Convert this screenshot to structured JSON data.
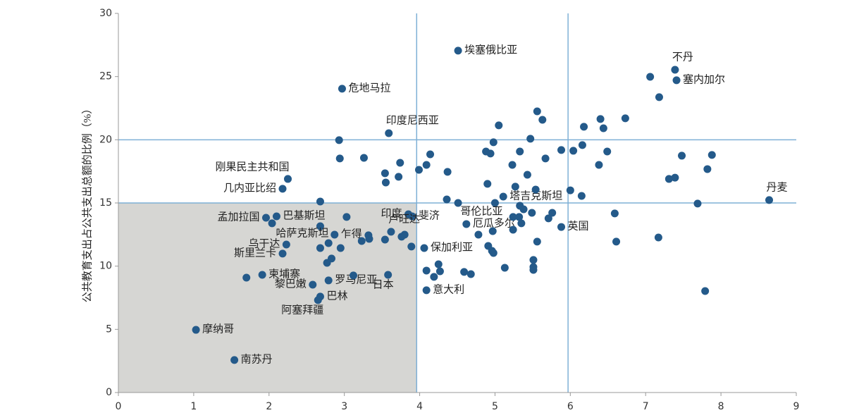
{
  "chart_data": {
    "type": "scatter",
    "y_label": "公共教育支出占公共支出总额的比例（%）",
    "xlim": [
      0,
      9
    ],
    "xticks": [
      0,
      1,
      2,
      3,
      4,
      5,
      6,
      7,
      8,
      9
    ],
    "ylim": [
      0,
      30
    ],
    "yticks": [
      0,
      5,
      10,
      15,
      20,
      25,
      30
    ],
    "vlines": [
      3.96,
      5.97
    ],
    "hlines": [
      15,
      20
    ],
    "shade": {
      "x": [
        0,
        3.96
      ],
      "y": [
        0,
        15
      ]
    },
    "line_color": "#7fb0d6",
    "shade_color": "#d6d6d3",
    "series": [
      {
        "color": "#245a8a",
        "labels": [
          "埃塞俄比亚",
          "危地马拉",
          "印度尼西亚",
          "刚果民主共和国",
          "几内亚比绍",
          "不丹",
          "塞内加尔",
          "丹麦",
          "孟加拉国",
          "巴基斯坦",
          "哈萨克斯坦",
          "乌干达",
          "斯里兰卡",
          "柬埔寨",
          "黎巴嫩",
          "巴林",
          "阿塞拜疆",
          "罗马尼亚",
          "日本",
          "摩纳哥",
          "南苏丹",
          "印度",
          "斐济",
          "卢旺达",
          "保加利亚",
          "意大利",
          "哥伦比亚",
          "厄瓜多尔",
          "塔吉克斯坦",
          "英国",
          "乍得",
          null,
          null,
          null,
          null,
          null,
          null,
          null,
          null,
          null,
          null,
          null,
          null,
          null,
          null,
          null,
          null,
          null,
          null,
          null,
          null,
          null,
          null,
          null,
          null,
          null,
          null,
          null,
          null,
          null,
          null,
          null,
          null,
          null,
          null,
          null,
          null,
          null,
          null,
          null,
          null,
          null,
          null,
          null,
          null,
          null,
          null,
          null,
          null,
          null,
          null,
          null,
          null,
          null,
          null,
          null,
          null,
          null,
          null,
          null,
          null,
          null,
          null,
          null,
          null,
          null,
          null,
          null,
          null,
          null,
          null,
          null,
          null,
          null,
          null,
          null,
          null,
          null,
          null,
          null,
          null,
          null,
          null,
          null,
          null,
          null,
          null
        ],
        "x": [
          4.51,
          2.97,
          3.59,
          2.25,
          2.18,
          7.39,
          7.41,
          8.64,
          1.96,
          2.1,
          2.68,
          2.23,
          2.18,
          1.91,
          2.58,
          2.68,
          2.65,
          2.79,
          3.58,
          1.03,
          1.54,
          3.85,
          3.9,
          3.62,
          4.06,
          4.09,
          5.0,
          4.62,
          5.11,
          5.88,
          2.87,
          7.06,
          7.18,
          6.73,
          6.4,
          6.44,
          6.18,
          6.16,
          6.49,
          6.04,
          5.88,
          6.0,
          6.15,
          6.38,
          6.59,
          6.61,
          7.48,
          7.88,
          7.82,
          7.31,
          7.39,
          7.69,
          7.17,
          7.79,
          5.56,
          5.63,
          5.05,
          5.47,
          4.98,
          4.88,
          4.94,
          5.33,
          5.67,
          5.23,
          5.43,
          4.9,
          5.27,
          5.54,
          5.33,
          5.38,
          5.49,
          5.76,
          5.71,
          5.24,
          5.32,
          5.35,
          5.24,
          4.97,
          4.78,
          5.56,
          4.91,
          4.96,
          4.98,
          5.51,
          5.51,
          5.51,
          5.13,
          4.59,
          4.68,
          4.09,
          4.27,
          4.25,
          4.19,
          3.54,
          3.55,
          3.72,
          3.74,
          3.99,
          4.09,
          4.14,
          4.37,
          4.36,
          4.51,
          3.26,
          2.93,
          2.94,
          2.68,
          2.04,
          3.03,
          3.23,
          3.32,
          3.33,
          3.54,
          3.76,
          3.8,
          3.89,
          2.79,
          2.95,
          2.68,
          2.83,
          2.77,
          3.12,
          1.7
        ],
        "values": [
          27.05,
          24.04,
          20.52,
          16.9,
          16.12,
          25.54,
          24.71,
          15.23,
          13.83,
          13.94,
          13.16,
          11.71,
          10.99,
          9.31,
          8.53,
          7.59,
          7.31,
          8.87,
          9.31,
          4.96,
          2.57,
          14.11,
          13.94,
          12.72,
          11.43,
          8.09,
          15.0,
          13.33,
          15.5,
          13.1,
          12.49,
          24.98,
          23.37,
          21.7,
          21.64,
          20.91,
          21.03,
          19.58,
          19.07,
          19.13,
          19.19,
          16.0,
          15.56,
          18.01,
          14.17,
          11.94,
          18.74,
          18.8,
          17.68,
          16.9,
          17.0,
          14.95,
          12.27,
          8.03,
          22.25,
          21.58,
          21.14,
          20.08,
          19.8,
          19.07,
          18.91,
          19.07,
          18.52,
          18.01,
          17.23,
          16.51,
          16.29,
          16.06,
          14.78,
          14.5,
          14.22,
          14.22,
          13.78,
          13.89,
          13.89,
          13.39,
          12.88,
          12.77,
          12.49,
          11.94,
          11.6,
          11.21,
          11.04,
          10.49,
          9.93,
          9.7,
          9.87,
          9.54,
          9.37,
          9.65,
          9.59,
          10.15,
          9.15,
          17.35,
          16.62,
          17.07,
          18.18,
          17.62,
          18.01,
          18.85,
          17.46,
          15.28,
          15.0,
          18.57,
          19.97,
          18.52,
          15.11,
          13.39,
          13.89,
          11.99,
          12.44,
          12.16,
          12.1,
          12.33,
          12.49,
          11.55,
          11.82,
          11.43,
          11.43,
          10.6,
          10.26,
          9.26,
          9.09
        ]
      }
    ]
  }
}
